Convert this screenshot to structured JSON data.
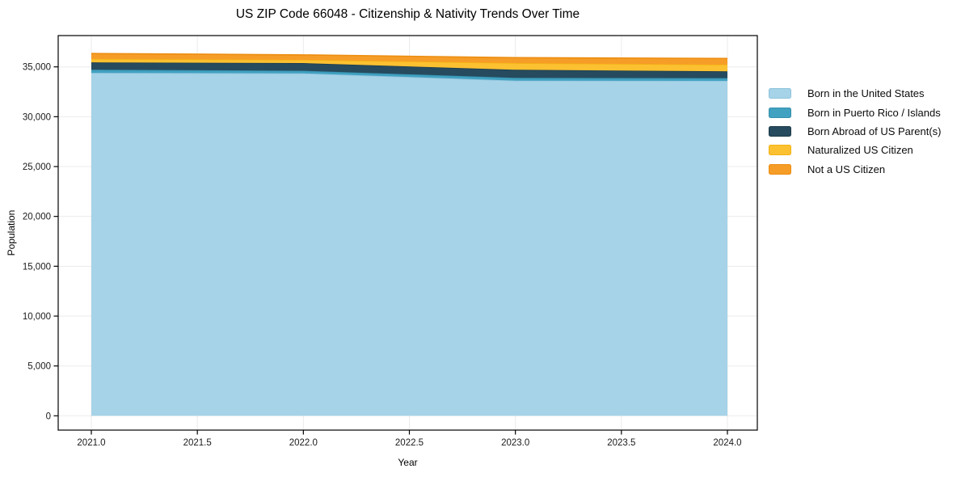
{
  "page": {
    "background": "#ffffff",
    "plot_frame_color": "#000000",
    "gridline_color": "rgba(0,0,0,0.08)",
    "tick_label_color": "#1a1a1a"
  },
  "chart_data": {
    "type": "area",
    "stacked": true,
    "title": "US ZIP Code 66048 - Citizenship & Nativity Trends Over Time",
    "xlabel": "Year",
    "ylabel": "Population",
    "grid": true,
    "legend_position": "right-outside",
    "xlim": [
      2021,
      2024
    ],
    "ylim": [
      0,
      35000
    ],
    "x": [
      2021,
      2022,
      2023,
      2024
    ],
    "series": [
      {
        "name": "Born in the United States",
        "color": "#a6d3e8",
        "edge_color": "#8ec3dc",
        "values": [
          34400,
          34350,
          33620,
          33600
        ]
      },
      {
        "name": "Born in Puerto Rico / Islands",
        "color": "#41a1c1",
        "edge_color": "#3690ae",
        "values": [
          320,
          260,
          280,
          270
        ]
      },
      {
        "name": "Born Abroad of US Parent(s)",
        "color": "#264b5e",
        "edge_color": "#1d3c4c",
        "values": [
          730,
          770,
          810,
          680
        ]
      },
      {
        "name": "Naturalized US Citizen",
        "color": "#fcc131",
        "edge_color": "#f3b214",
        "values": [
          350,
          330,
          670,
          670
        ]
      },
      {
        "name": "Not a US Citizen",
        "color": "#f69d28",
        "edge_color": "#ec8d11",
        "values": [
          540,
          490,
          545,
          625
        ]
      }
    ],
    "x_ticks": {
      "values": [
        2021.0,
        2021.5,
        2022.0,
        2022.5,
        2023.0,
        2023.5,
        2024.0
      ],
      "labels": [
        "2021.0",
        "2021.5",
        "2022.0",
        "2022.5",
        "2023.0",
        "2023.5",
        "2024.0"
      ]
    },
    "y_ticks": {
      "values": [
        0,
        5000,
        10000,
        15000,
        20000,
        25000,
        30000,
        35000
      ],
      "labels": [
        "0",
        "5,000",
        "10,000",
        "15,000",
        "20,000",
        "25,000",
        "30,000",
        "35,000"
      ]
    }
  }
}
